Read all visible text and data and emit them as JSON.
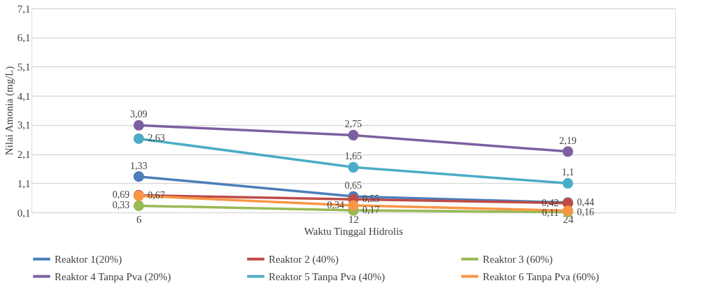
{
  "chart_data": {
    "type": "line",
    "xlabel": "Waktu Tinggal Hidrolis",
    "ylabel": "Nilai Amonia (mg/L)",
    "categories": [
      "6",
      "12",
      "24"
    ],
    "ylim": [
      0.1,
      7.1
    ],
    "yticks": [
      {
        "value": 0.1,
        "label": "0,1"
      },
      {
        "value": 1.1,
        "label": "1,1"
      },
      {
        "value": 2.1,
        "label": "2,1"
      },
      {
        "value": 3.1,
        "label": "3,1"
      },
      {
        "value": 4.1,
        "label": "4,1"
      },
      {
        "value": 5.1,
        "label": "5,1"
      },
      {
        "value": 6.1,
        "label": "6,1"
      },
      {
        "value": 7.1,
        "label": "7,1"
      }
    ],
    "grid": "y",
    "legend": "bottom",
    "marker": "circle",
    "line_style": "solid",
    "series": [
      {
        "name": "Reaktor 1(20%)",
        "color": "#4a7ebb",
        "values": [
          1.33,
          0.65,
          0.44
        ],
        "value_labels": [
          "1,33",
          "0,65",
          "0,44"
        ]
      },
      {
        "name": "Reaktor 2 (40%)",
        "color": "#be4b48",
        "values": [
          0.69,
          0.55,
          0.42
        ],
        "value_labels": [
          "0,69",
          "0,55",
          "0,42"
        ]
      },
      {
        "name": "Reaktor 3 (60%)",
        "color": "#98b954",
        "values": [
          0.33,
          0.17,
          0.11
        ],
        "value_labels": [
          "0,33",
          "0,17",
          "0,11"
        ]
      },
      {
        "name": "Reaktor 4 Tanpa Pva (20%)",
        "color": "#7d5fa0",
        "values": [
          3.09,
          2.75,
          2.19
        ],
        "value_labels": [
          "3,09",
          "2,75",
          "2,19"
        ]
      },
      {
        "name": "Reaktor 5 Tanpa Pva (40%)",
        "color": "#4bacc6",
        "values": [
          2.63,
          1.65,
          1.1
        ],
        "value_labels": [
          "2,63",
          "1,65",
          "1,1"
        ]
      },
      {
        "name": "Reaktor 6 Tanpa Pva (60%)",
        "color": "#f79646",
        "values": [
          0.67,
          0.34,
          0.16
        ],
        "value_labels": [
          "0,67",
          "0,34",
          "0,16"
        ]
      }
    ]
  }
}
